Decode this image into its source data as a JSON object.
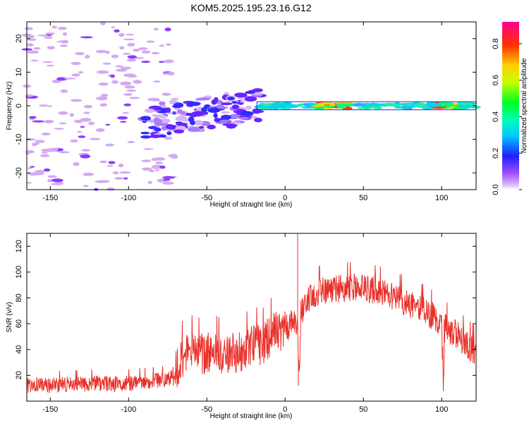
{
  "page": {
    "title": "KOM5.2025.195.23.16.G12"
  },
  "colorbar": {
    "label": "Normalized spectral amplitude",
    "ticks": [
      0.0,
      0.2,
      0.4,
      0.6,
      0.8
    ],
    "tick_labels": [
      "0.0",
      "0.2",
      "0.4",
      "0.6",
      "0.8"
    ],
    "range": [
      0,
      0.92
    ]
  },
  "chart_data": [
    {
      "type": "heatmap",
      "title": "KOM5.2025.195.23.16.G12",
      "xlabel": "Height of straight line (km)",
      "ylabel": "Frequency (Hz)",
      "xlim": [
        -165,
        122
      ],
      "ylim": [
        -25,
        25
      ],
      "x_ticks": [
        -150,
        -100,
        -50,
        0,
        50,
        100
      ],
      "x_tick_labels": [
        "-150",
        "-100",
        "-50",
        "0",
        "50",
        "100"
      ],
      "y_ticks": [
        -20,
        -10,
        0,
        10,
        20
      ],
      "y_tick_labels": [
        "-20",
        "-10",
        "0",
        "10",
        "20"
      ],
      "colormap": "rainbow (purple-blue-cyan-green-yellow-red-magenta)",
      "features": [
        {
          "region": "x -165 to -85",
          "description": "scattered weak light-purple patches across all frequencies",
          "amplitude": 0.05
        },
        {
          "region": "x -85 to -20",
          "frequency_range": [
            -8,
            3
          ],
          "description": "stronger blue/purple patches sloping toward 0 Hz",
          "amplitude": 0.2
        },
        {
          "region": "x -20 to 122",
          "frequency": 0,
          "description": "narrow band near 0 Hz, cyan-green, peaks 20 to 40 km and 100 to 110 km",
          "amplitude": 0.9
        }
      ]
    },
    {
      "type": "line",
      "xlabel": "Height of straight line (km)",
      "ylabel": "SNR (v/v)",
      "xlim": [
        -165,
        122
      ],
      "ylim": [
        0,
        130
      ],
      "x_ticks": [
        -150,
        -100,
        -50,
        0,
        50,
        100
      ],
      "x_tick_labels": [
        "-150",
        "-100",
        "-50",
        "0",
        "50",
        "100"
      ],
      "y_ticks": [
        20,
        40,
        60,
        80,
        100,
        120
      ],
      "y_tick_labels": [
        "20",
        "40",
        "60",
        "80",
        "100",
        "120"
      ],
      "series_color": "#e8302a",
      "x": [
        -165,
        -160,
        -150,
        -140,
        -130,
        -120,
        -110,
        -100,
        -90,
        -80,
        -75,
        -70,
        -65,
        -60,
        -55,
        -50,
        -45,
        -40,
        -35,
        -30,
        -25,
        -20,
        -15,
        -10,
        -5,
        0,
        5,
        8,
        9,
        10,
        15,
        20,
        25,
        30,
        35,
        40,
        45,
        50,
        55,
        60,
        65,
        70,
        75,
        80,
        85,
        90,
        95,
        100,
        101,
        102,
        105,
        110,
        115,
        122
      ],
      "y": [
        12,
        13,
        12,
        13,
        13,
        14,
        13,
        14,
        15,
        16,
        17,
        22,
        35,
        38,
        36,
        37,
        38,
        35,
        37,
        38,
        40,
        45,
        42,
        50,
        55,
        55,
        62,
        55,
        12,
        70,
        78,
        84,
        86,
        87,
        87,
        88,
        88,
        87,
        86,
        85,
        83,
        80,
        78,
        74,
        72,
        70,
        65,
        60,
        12,
        58,
        55,
        52,
        45,
        38
      ],
      "annotations": [
        {
          "x": 8,
          "y": 130,
          "note": "spike"
        },
        {
          "x": 8.5,
          "y": 12,
          "note": "dip"
        },
        {
          "x": 101,
          "y": 12,
          "note": "dip"
        }
      ]
    }
  ]
}
